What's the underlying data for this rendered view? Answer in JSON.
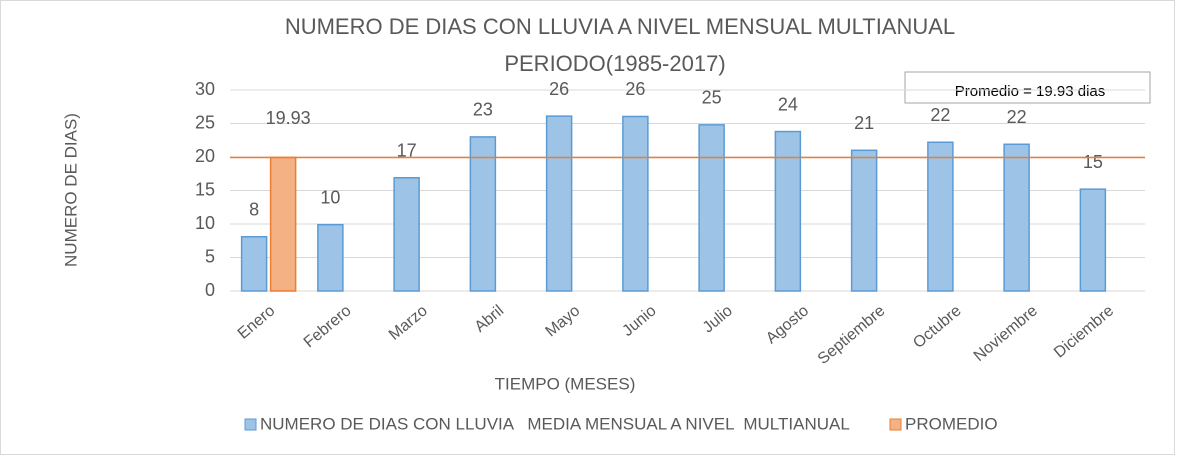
{
  "chart_data": {
    "type": "bar",
    "title": "NUMERO DE DIAS CON LLUVIA A NIVEL MENSUAL MULTIANUAL",
    "subtitle": "PERIODO(1985-2017)",
    "annotation": "Promedio = 19.93 dias",
    "y_label": "NUMERO DE DIAS)",
    "x_label": "TIEMPO (MESES)",
    "categories": [
      "Enero",
      "Febrero",
      "Marzo",
      "Abril",
      "Mayo",
      "Junio",
      "Julio",
      "Agosto",
      "Septiembre",
      "Octubre",
      "Noviembre",
      "Diciembre"
    ],
    "series": [
      {
        "name": "NUMERO DE DIAS CON LLUVIA   MEDIA MENSUAL A NIVEL  MULTIANUAL",
        "color": "#9dc3e6",
        "edge": "#5b9bd5",
        "values": [
          8.1,
          9.9,
          16.9,
          23,
          26.1,
          26.05,
          24.8,
          23.8,
          21,
          22.2,
          21.9,
          15.2
        ],
        "value_labels": [
          "8",
          "10",
          "17",
          "23",
          "26",
          "26",
          "25",
          "24",
          "21",
          "22",
          "22",
          "15"
        ]
      },
      {
        "name": "PROMEDIO",
        "color": "#f4b183",
        "edge": "#ed7d31",
        "values": [
          19.93,
          null,
          null,
          null,
          null,
          null,
          null,
          null,
          null,
          null,
          null,
          null
        ]
      }
    ],
    "average_line": 19.93,
    "average_color": "#ed7d31",
    "ylim": [
      0,
      30
    ],
    "yticks": [
      0,
      5,
      10,
      15,
      20,
      25,
      30
    ],
    "grid": true
  }
}
